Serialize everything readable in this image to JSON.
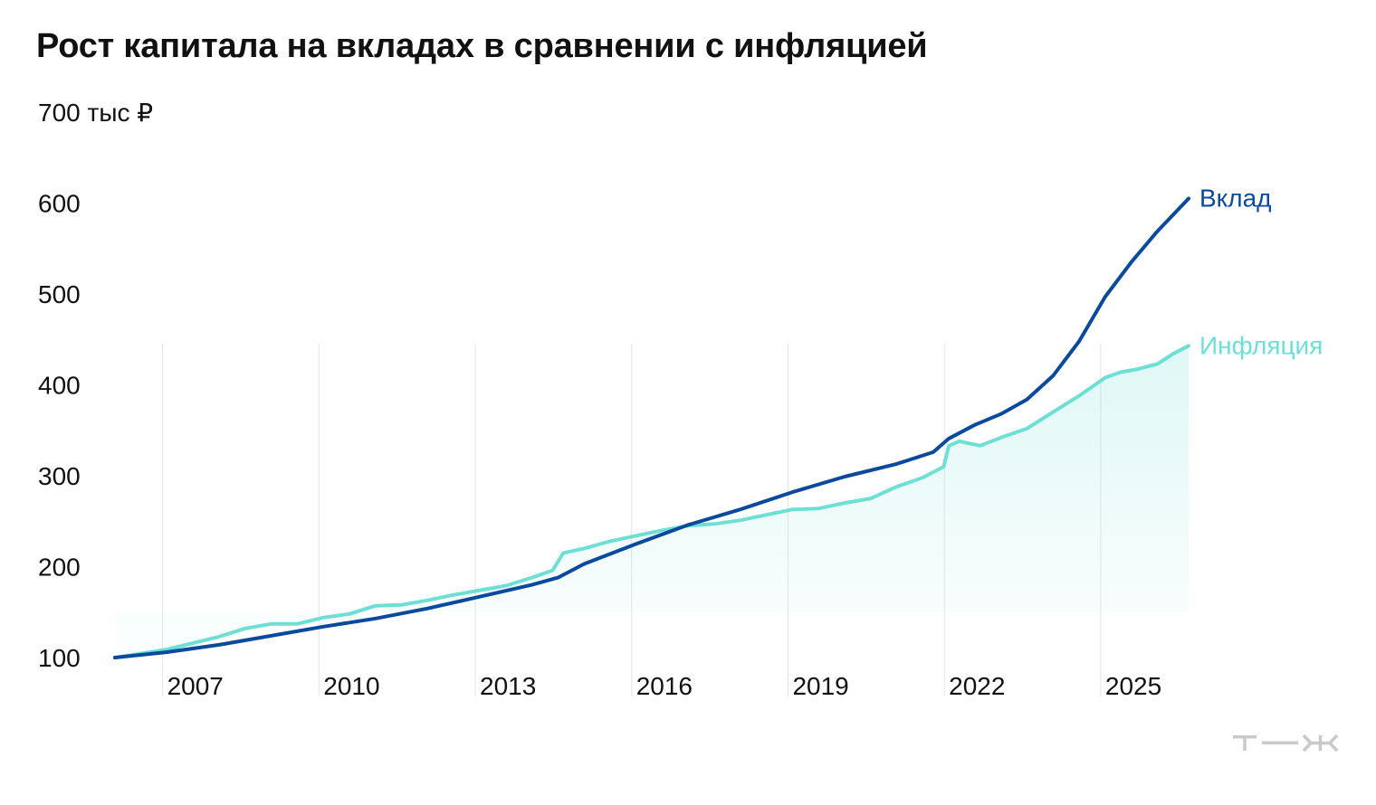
{
  "chart_data": {
    "type": "line",
    "title": "Рост капитала на вкладах в сравнении с инфляцией",
    "y_unit_label": "700 тыс ₽",
    "ylim": [
      100,
      700
    ],
    "y_ticks": [
      100,
      200,
      300,
      400,
      500,
      600
    ],
    "y_tick_labels": [
      "100",
      "200",
      "300",
      "400",
      "500",
      "600"
    ],
    "xlim": [
      2006,
      2026.8
    ],
    "x_ticks": [
      2007,
      2010,
      2013,
      2016,
      2019,
      2022,
      2025
    ],
    "x_tick_labels": [
      "2007",
      "2010",
      "2013",
      "2016",
      "2019",
      "2022",
      "2025"
    ],
    "grid": "vertical",
    "legend": "inline-right",
    "series": [
      {
        "name": "Вклад",
        "color": "#0a4a9c",
        "x": [
          2006.0,
          2007.0,
          2008.0,
          2009.0,
          2010.0,
          2011.0,
          2012.0,
          2013.0,
          2014.0,
          2014.5,
          2015.0,
          2016.0,
          2017.0,
          2018.0,
          2019.0,
          2020.0,
          2021.0,
          2021.7,
          2022.0,
          2022.5,
          2023.0,
          2023.5,
          2024.0,
          2024.5,
          2025.0,
          2025.5,
          2026.0,
          2026.6
        ],
        "values": [
          100,
          106,
          114,
          124,
          134,
          143,
          154,
          167,
          180,
          188,
          203,
          225,
          246,
          263,
          282,
          299,
          313,
          326,
          341,
          356,
          368,
          384,
          410,
          448,
          497,
          535,
          569,
          605
        ]
      },
      {
        "name": "Инфляция",
        "color": "#6edfd4",
        "x": [
          2006.0,
          2007.0,
          2007.5,
          2008.0,
          2008.5,
          2009.0,
          2009.5,
          2010.0,
          2010.5,
          2011.0,
          2011.5,
          2012.0,
          2012.5,
          2013.0,
          2013.5,
          2014.0,
          2014.4,
          2014.6,
          2015.0,
          2015.5,
          2016.0,
          2016.5,
          2017.0,
          2017.5,
          2018.0,
          2018.5,
          2019.0,
          2019.5,
          2020.0,
          2020.5,
          2021.0,
          2021.5,
          2021.9,
          2022.0,
          2022.2,
          2022.6,
          2023.0,
          2023.5,
          2024.0,
          2024.5,
          2025.0,
          2025.3,
          2025.6,
          2026.0,
          2026.3,
          2026.6
        ],
        "values": [
          100,
          109,
          116,
          123,
          132,
          137,
          137,
          144,
          148,
          157,
          158,
          163,
          169,
          174,
          179,
          188,
          196,
          215,
          220,
          228,
          234,
          240,
          245,
          247,
          251,
          257,
          263,
          264,
          270,
          275,
          288,
          298,
          310,
          333,
          338,
          333,
          342,
          352,
          370,
          388,
          408,
          414,
          417,
          423,
          434,
          443
        ]
      }
    ]
  },
  "watermark": "т—ж"
}
